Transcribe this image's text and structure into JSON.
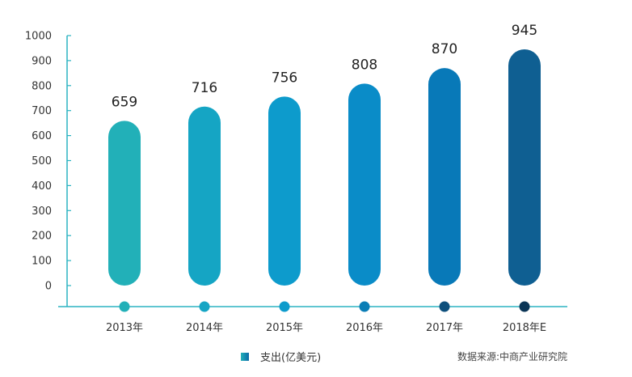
{
  "chart_data": {
    "type": "bar",
    "categories": [
      "2013年",
      "2014年",
      "2015年",
      "2016年",
      "2017年",
      "2018年E"
    ],
    "values": [
      659,
      716,
      756,
      808,
      870,
      945
    ],
    "series": [
      {
        "name": "支出(亿美元)",
        "values": [
          659,
          716,
          756,
          808,
          870,
          945
        ]
      }
    ],
    "ylim": [
      0,
      1000
    ],
    "yticks": [
      0,
      100,
      200,
      300,
      400,
      500,
      600,
      700,
      800,
      900,
      1000
    ],
    "bar_colors": [
      "#22b0b8",
      "#15a5c4",
      "#0d9bcc",
      "#0a8cc8",
      "#0879b8",
      "#0f5f92"
    ],
    "dot_colors": [
      "#22b0b8",
      "#15a5c4",
      "#0d9bcc",
      "#0a7db6",
      "#0d4f7c",
      "#0b3556"
    ],
    "axis_color": "#2bb3c2",
    "grid": false,
    "legend_position": "bottom-center"
  },
  "legend": {
    "label": "支出(亿美元)"
  },
  "source": {
    "text": "数据来源:中商产业研究院"
  }
}
